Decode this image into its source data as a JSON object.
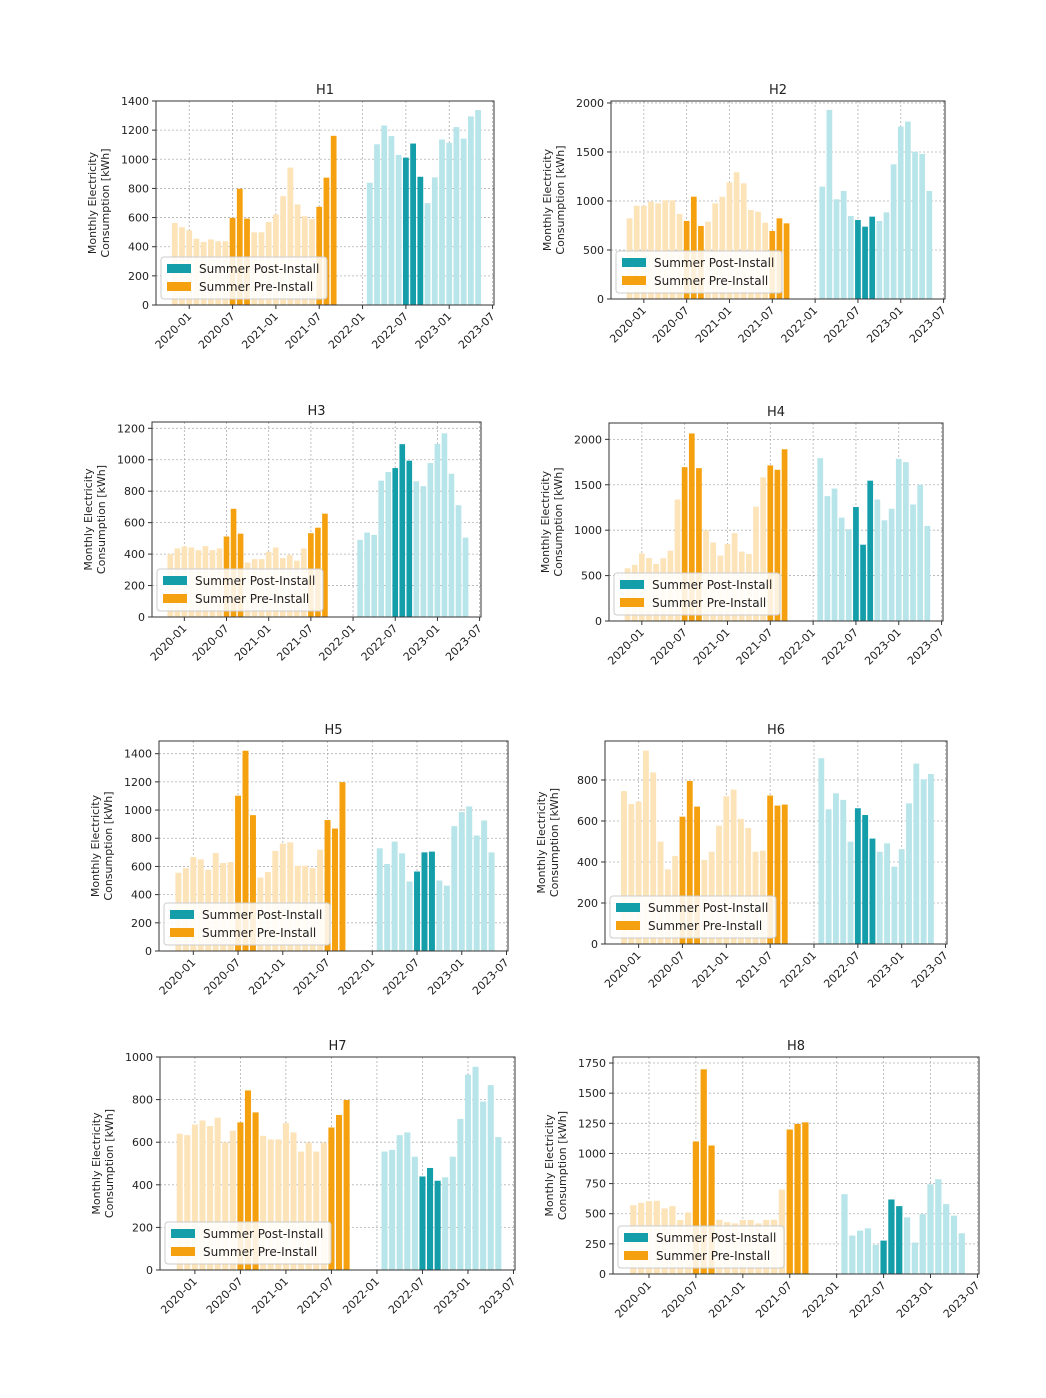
{
  "colors": {
    "pre_summer": "#f5a10f",
    "pre_other": "#fde3b8",
    "post_summer": "#139eaa",
    "post_other": "#b8e5e9"
  },
  "summer_months": [
    7,
    8,
    9
  ],
  "pre_months": [
    "2019-11",
    "2019-12",
    "2020-01",
    "2020-02",
    "2020-03",
    "2020-04",
    "2020-05",
    "2020-06",
    "2020-07",
    "2020-08",
    "2020-09",
    "2020-10",
    "2020-11",
    "2020-12",
    "2021-01",
    "2021-02",
    "2021-03",
    "2021-04",
    "2021-05",
    "2021-06",
    "2021-07",
    "2021-08",
    "2021-09"
  ],
  "post_months": [
    "2022-02",
    "2022-03",
    "2022-04",
    "2022-05",
    "2022-06",
    "2022-07",
    "2022-08",
    "2022-09",
    "2022-10",
    "2022-11",
    "2022-12",
    "2023-01",
    "2023-02",
    "2023-03",
    "2023-04",
    "2023-05"
  ],
  "chart_data": [
    {
      "type": "bar",
      "title": "H1",
      "ylabel": "Monthly Electricity Consumption [kWh]",
      "xlabel": "",
      "xticks": [
        "2020-01",
        "2020-07",
        "2021-01",
        "2021-07",
        "2022-01",
        "2022-07",
        "2023-01",
        "2023-07"
      ],
      "yticks": [
        "0",
        "200",
        "400",
        "600",
        "800",
        "1000",
        "1200",
        "1400"
      ],
      "ylim": [
        0,
        1400
      ],
      "legend": [
        "Summer Post-Install",
        "Summer Pre-Install"
      ],
      "legend_position": "lower-left",
      "pre": [
        563,
        534,
        513,
        455,
        432,
        450,
        437,
        437,
        598,
        798,
        593,
        499,
        499,
        570,
        621,
        747,
        943,
        690,
        609,
        591,
        674,
        874,
        1161
      ],
      "post": [
        839,
        1103,
        1232,
        1159,
        1030,
        1011,
        1108,
        880,
        699,
        876,
        1136,
        1113,
        1221,
        1142,
        1294,
        1338
      ]
    },
    {
      "type": "bar",
      "title": "H2",
      "ylabel": "Monthly Electricity Consumption [kWh]",
      "xlabel": "",
      "xticks": [
        "2020-01",
        "2020-07",
        "2021-01",
        "2021-07",
        "2022-01",
        "2022-07",
        "2023-01",
        "2023-07"
      ],
      "yticks": [
        "0",
        "500",
        "1000",
        "1500",
        "2000"
      ],
      "ylim": [
        0,
        2020
      ],
      "legend": [
        "Summer Post-Install",
        "Summer Pre-Install"
      ],
      "legend_position": "lower-left",
      "pre": [
        823,
        952,
        952,
        993,
        976,
        1007,
        1007,
        867,
        796,
        1044,
        745,
        789,
        976,
        1044,
        1190,
        1293,
        1180,
        908,
        891,
        779,
        694,
        823,
        772
      ],
      "post": [
        1146,
        1929,
        1017,
        1102,
        847,
        806,
        738,
        840,
        796,
        884,
        1374,
        1759,
        1810,
        1503,
        1480,
        1102
      ]
    },
    {
      "type": "bar",
      "title": "H3",
      "ylabel": "Monthly Electricity Consumption [kWh]",
      "xlabel": "",
      "xticks": [
        "2020-01",
        "2020-07",
        "2021-01",
        "2021-07",
        "2022-01",
        "2022-07",
        "2023-01",
        "2023-07"
      ],
      "yticks": [
        "0",
        "200",
        "400",
        "600",
        "800",
        "1000",
        "1200"
      ],
      "ylim": [
        0,
        1240
      ],
      "legend": [
        "Summer Post-Install",
        "Summer Pre-Install"
      ],
      "legend_position": "lower-left",
      "pre": [
        400,
        436,
        448,
        442,
        425,
        451,
        425,
        436,
        512,
        688,
        530,
        347,
        368,
        368,
        415,
        442,
        375,
        394,
        358,
        436,
        533,
        568,
        657
      ],
      "post": [
        491,
        537,
        522,
        867,
        922,
        947,
        1099,
        994,
        863,
        832,
        979,
        1101,
        1168,
        911,
        711,
        505
      ]
    },
    {
      "type": "bar",
      "title": "H4",
      "ylabel": "Monthly Electricity Consumption [kWh]",
      "xlabel": "",
      "xticks": [
        "2020-01",
        "2020-07",
        "2021-01",
        "2021-07",
        "2022-01",
        "2022-07",
        "2023-01",
        "2023-07"
      ],
      "yticks": [
        "0",
        "500",
        "1000",
        "1500",
        "2000"
      ],
      "ylim": [
        0,
        2180
      ],
      "legend": [
        "Summer Post-Install",
        "Summer Pre-Install"
      ],
      "legend_position": "lower-left",
      "pre": [
        580,
        618,
        745,
        694,
        629,
        691,
        774,
        1338,
        1694,
        2065,
        1683,
        1000,
        865,
        720,
        847,
        967,
        764,
        738,
        1258,
        1582,
        1713,
        1665,
        1891
      ],
      "post": [
        1793,
        1375,
        1458,
        1138,
        1011,
        1255,
        840,
        1545,
        1338,
        1109,
        1236,
        1785,
        1749,
        1283,
        1502,
        1047
      ]
    },
    {
      "type": "bar",
      "title": "H5",
      "ylabel": "Monthly Electricity Consumption [kWh]",
      "xlabel": "",
      "xticks": [
        "2020-01",
        "2020-07",
        "2021-01",
        "2021-07",
        "2022-01",
        "2022-07",
        "2023-01",
        "2023-07"
      ],
      "yticks": [
        "0",
        "200",
        "400",
        "600",
        "800",
        "1000",
        "1200",
        "1400"
      ],
      "ylim": [
        0,
        1490
      ],
      "legend": [
        "Summer Post-Install",
        "Summer Pre-Install"
      ],
      "legend_position": "lower-left",
      "pre": [
        555,
        588,
        667,
        650,
        576,
        695,
        624,
        631,
        1102,
        1421,
        964,
        521,
        560,
        710,
        762,
        771,
        605,
        605,
        588,
        719,
        929,
        869,
        1198
      ],
      "post": [
        729,
        617,
        776,
        693,
        493,
        564,
        700,
        705,
        500,
        464,
        886,
        986,
        1026,
        819,
        926,
        700
      ]
    },
    {
      "type": "bar",
      "title": "H6",
      "ylabel": "Monthly Electricity Consumption [kWh]",
      "xlabel": "",
      "xticks": [
        "2020-01",
        "2020-07",
        "2021-01",
        "2021-07",
        "2022-01",
        "2022-07",
        "2023-01",
        "2023-07"
      ],
      "yticks": [
        "0",
        "200",
        "400",
        "600",
        "800"
      ],
      "ylim": [
        0,
        990
      ],
      "legend": [
        "Summer Post-Install",
        "Summer Pre-Install"
      ],
      "legend_position": "lower-left",
      "pre": [
        746,
        683,
        694,
        943,
        837,
        499,
        364,
        429,
        621,
        795,
        670,
        410,
        450,
        577,
        720,
        753,
        610,
        566,
        450,
        455,
        724,
        675,
        680
      ],
      "post": [
        906,
        657,
        735,
        703,
        499,
        662,
        629,
        514,
        450,
        491,
        377,
        462,
        686,
        880,
        803,
        829
      ]
    },
    {
      "type": "bar",
      "title": "H7",
      "ylabel": "Monthly Electricity Consumption [kWh]",
      "xlabel": "",
      "xticks": [
        "2020-01",
        "2020-07",
        "2021-01",
        "2021-07",
        "2022-01",
        "2022-07",
        "2023-01",
        "2023-07"
      ],
      "yticks": [
        "0",
        "200",
        "400",
        "600",
        "800",
        "1000"
      ],
      "ylim": [
        0,
        1000
      ],
      "legend": [
        "Summer Post-Install",
        "Summer Pre-Install"
      ],
      "legend_position": "lower-left",
      "pre": [
        640,
        633,
        683,
        702,
        676,
        715,
        600,
        654,
        693,
        843,
        740,
        630,
        613,
        613,
        690,
        646,
        556,
        598,
        556,
        598,
        669,
        728,
        798
      ],
      "post": [
        556,
        564,
        633,
        646,
        532,
        439,
        479,
        419,
        435,
        532,
        709,
        917,
        954,
        791,
        868,
        624
      ]
    },
    {
      "type": "bar",
      "title": "H8",
      "ylabel": "Monthly Electricity Consumption [kWh]",
      "xlabel": "",
      "xticks": [
        "2020-01",
        "2020-07",
        "2021-01",
        "2021-07",
        "2022-01",
        "2022-07",
        "2023-01",
        "2023-07"
      ],
      "yticks": [
        "0",
        "250",
        "500",
        "750",
        "1000",
        "1250",
        "1500",
        "1750"
      ],
      "ylim": [
        0,
        1800
      ],
      "legend": [
        "Summer Post-Install",
        "Summer Pre-Install"
      ],
      "legend_position": "lower-left",
      "pre": [
        571,
        590,
        604,
        607,
        544,
        563,
        448,
        511,
        1099,
        1698,
        1066,
        450,
        430,
        420,
        448,
        448,
        420,
        448,
        450,
        700,
        1198,
        1245,
        1258
      ],
      "post": [
        662,
        319,
        360,
        379,
        242,
        277,
        618,
        563,
        470,
        261,
        497,
        744,
        786,
        580,
        484,
        338
      ]
    }
  ]
}
